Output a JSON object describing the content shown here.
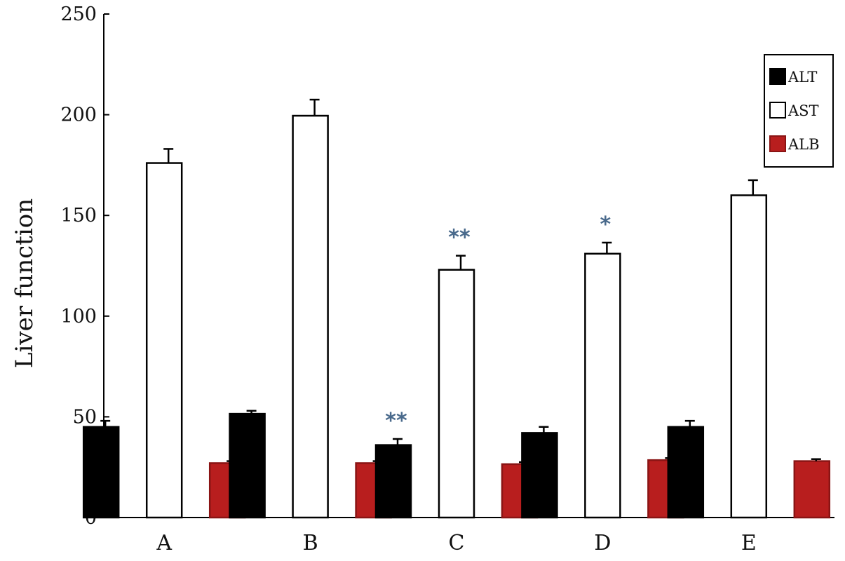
{
  "chart_data": {
    "type": "bar",
    "title": "",
    "xlabel": "",
    "ylabel": "Liver function",
    "ylim": [
      0,
      250
    ],
    "yticks": [
      0,
      50,
      100,
      150,
      200,
      250
    ],
    "categories": [
      "A",
      "B",
      "C",
      "D",
      "E"
    ],
    "grid": false,
    "legend": "top-right",
    "series": [
      {
        "name": "ALT",
        "color": "#000000",
        "values": [
          45,
          51.5,
          36,
          42,
          45
        ],
        "errors": [
          3,
          1.5,
          3,
          3,
          3
        ],
        "annotations": [
          "",
          "",
          "**",
          "",
          ""
        ]
      },
      {
        "name": "AST",
        "color": "#ffffff",
        "values": [
          176,
          199.5,
          123,
          131,
          160
        ],
        "errors": [
          7,
          8,
          7,
          5.5,
          7.5
        ],
        "annotations": [
          "",
          "",
          "**",
          "*",
          ""
        ]
      },
      {
        "name": "ALB",
        "color": "#b81e1e",
        "values": [
          27,
          27,
          26.5,
          28.5,
          28
        ],
        "errors": [
          1,
          1,
          1,
          1,
          1
        ],
        "annotations": [
          "",
          "",
          "",
          "",
          ""
        ]
      }
    ]
  }
}
